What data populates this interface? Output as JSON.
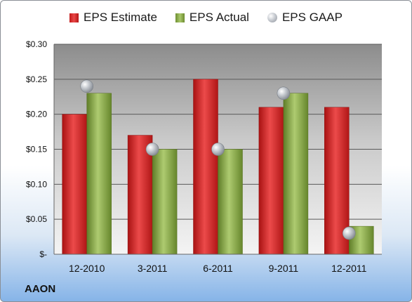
{
  "chart_data": {
    "type": "bar",
    "title": "",
    "xlabel": "",
    "ylabel": "",
    "categories": [
      "12-2010",
      "3-2011",
      "6-2011",
      "9-2011",
      "12-2011"
    ],
    "series": [
      {
        "name": "EPS Estimate",
        "kind": "bar",
        "color": "#d42a2a",
        "values": [
          0.2,
          0.17,
          0.25,
          0.21,
          0.21
        ]
      },
      {
        "name": "EPS Actual",
        "kind": "bar",
        "color": "#8fb04c",
        "values": [
          0.23,
          0.15,
          0.15,
          0.23,
          0.04
        ]
      },
      {
        "name": "EPS GAAP",
        "kind": "marker",
        "color": "#b8bcc2",
        "values": [
          0.24,
          0.15,
          0.15,
          0.23,
          0.03
        ]
      }
    ],
    "ylim": [
      0,
      0.3
    ],
    "yticks": [
      0,
      0.05,
      0.1,
      0.15,
      0.2,
      0.25,
      0.3
    ],
    "ytick_labels": [
      "$-",
      "$0.05",
      "$0.10",
      "$0.15",
      "$0.20",
      "$0.25",
      "$0.30"
    ],
    "grid": true,
    "legend_position": "top"
  },
  "company_label": "AAON"
}
